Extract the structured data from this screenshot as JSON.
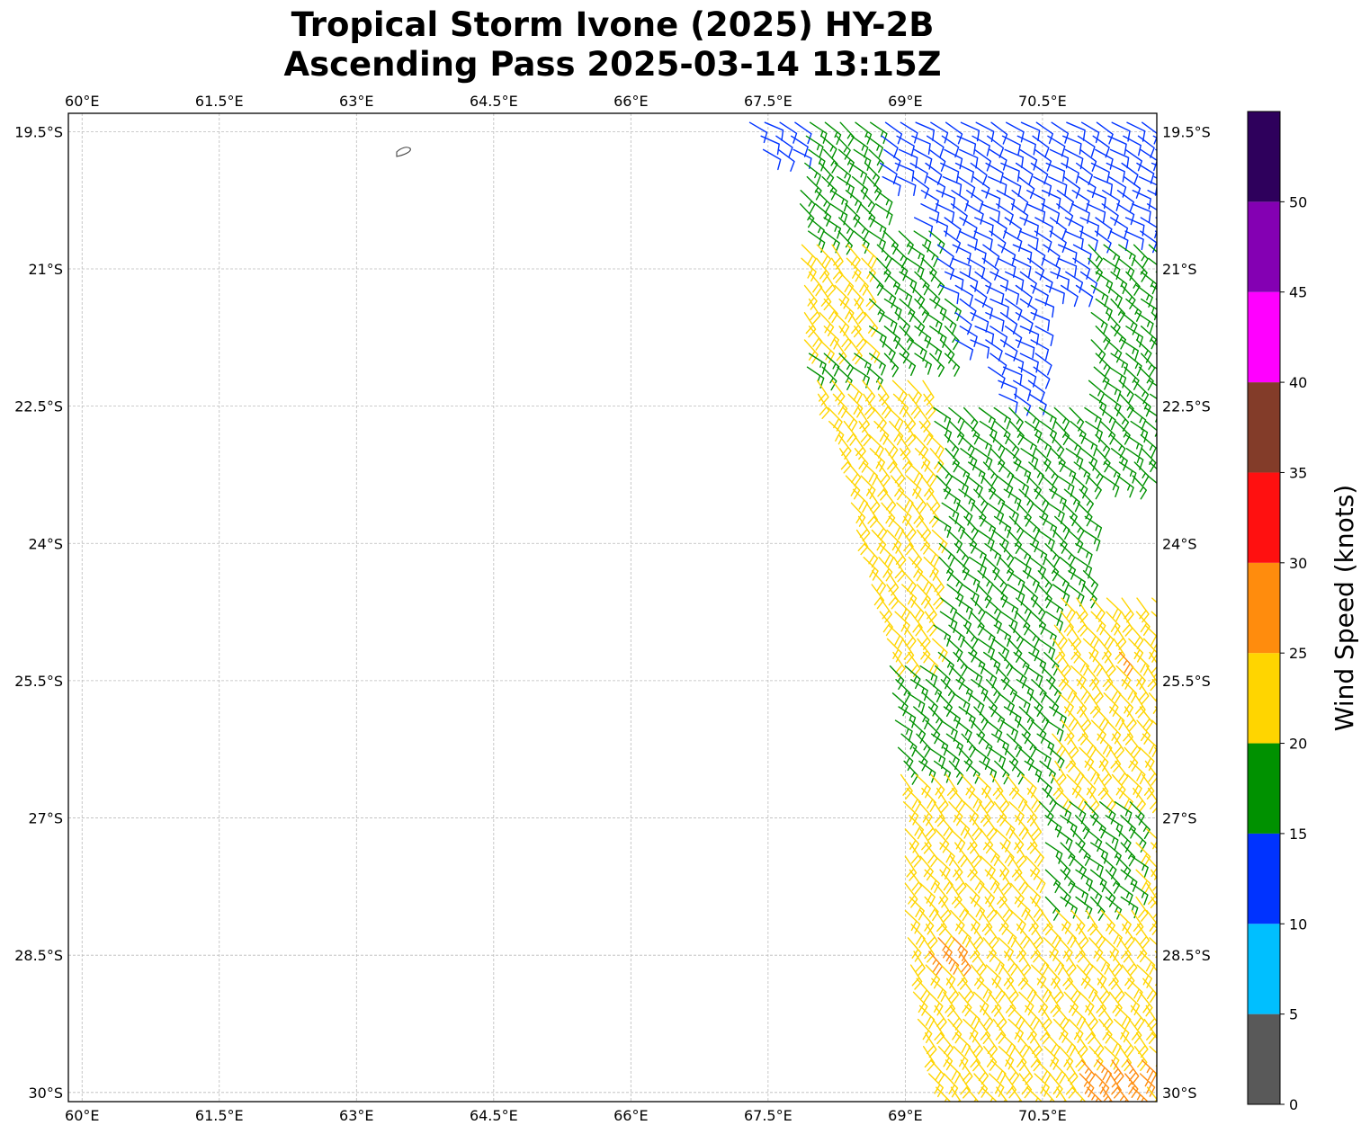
{
  "title": {
    "line1": "Tropical Storm Ivone (2025) HY-2B",
    "line2": "Ascending Pass 2025-03-14 13:15Z"
  },
  "map": {
    "lon_range": [
      59.85,
      71.75
    ],
    "lat_range": [
      -30.1,
      -19.3
    ],
    "lon_ticks": [
      {
        "value": 60.0,
        "label": "60°E"
      },
      {
        "value": 61.5,
        "label": "61.5°E"
      },
      {
        "value": 63.0,
        "label": "63°E"
      },
      {
        "value": 64.5,
        "label": "64.5°E"
      },
      {
        "value": 66.0,
        "label": "66°E"
      },
      {
        "value": 67.5,
        "label": "67.5°E"
      },
      {
        "value": 69.0,
        "label": "69°E"
      },
      {
        "value": 70.5,
        "label": "70.5°E"
      }
    ],
    "lat_ticks": [
      {
        "value": -19.5,
        "label": "19.5°S"
      },
      {
        "value": -21.0,
        "label": "21°S"
      },
      {
        "value": -22.5,
        "label": "22.5°S"
      },
      {
        "value": -24.0,
        "label": "24°S"
      },
      {
        "value": -25.5,
        "label": "25.5°S"
      },
      {
        "value": -27.0,
        "label": "27°S"
      },
      {
        "value": -28.5,
        "label": "28.5°S"
      },
      {
        "value": -30.0,
        "label": "30°S"
      }
    ],
    "gridlines": true,
    "coastline_features": [
      "Rodrigues Island near 63.4°E, 19.7°S"
    ]
  },
  "colorbar": {
    "label": "Wind Speed (knots)",
    "bins": [
      {
        "min": 0,
        "max": 5,
        "color": "#595959"
      },
      {
        "min": 5,
        "max": 10,
        "color": "#00bfff"
      },
      {
        "min": 10,
        "max": 15,
        "color": "#0033ff"
      },
      {
        "min": 15,
        "max": 20,
        "color": "#009100"
      },
      {
        "min": 20,
        "max": 25,
        "color": "#ffd500"
      },
      {
        "min": 25,
        "max": 30,
        "color": "#ff8c0d"
      },
      {
        "min": 30,
        "max": 35,
        "color": "#ff1010"
      },
      {
        "min": 35,
        "max": 40,
        "color": "#833c29"
      },
      {
        "min": 40,
        "max": 45,
        "color": "#ff00ff"
      },
      {
        "min": 45,
        "max": 50,
        "color": "#8400b3"
      },
      {
        "min": 50,
        "max": 55,
        "color": "#2e005c"
      }
    ],
    "tick_labels": [
      "0",
      "5",
      "10",
      "15",
      "20",
      "25",
      "30",
      "35",
      "40",
      "45",
      "50"
    ]
  },
  "chart_data": {
    "type": "wind_barbs",
    "title": "Tropical Storm Ivone (2025) HY-2B Ascending Pass 2025-03-14 13:15Z",
    "units": "knots",
    "swath": {
      "west_edge": [
        [
          -19.4,
          67.3
        ],
        [
          -20.0,
          67.6
        ],
        [
          -21.0,
          67.9
        ],
        [
          -22.0,
          67.9
        ],
        [
          -23.0,
          68.3
        ],
        [
          -24.0,
          68.5
        ],
        [
          -25.0,
          68.8
        ],
        [
          -26.0,
          68.9
        ],
        [
          -27.0,
          69.0
        ],
        [
          -28.0,
          69.0
        ],
        [
          -29.0,
          69.1
        ],
        [
          -30.0,
          69.3
        ]
      ],
      "east_edge_lon": 71.75,
      "spacing_deg": 0.165
    },
    "speed_regions": [
      {
        "name": "blue",
        "speed_kt": 12,
        "direction_deg": 120,
        "cells": [
          [
            -19.4,
            68.6,
            -20.0,
            71.8
          ],
          [
            -20.0,
            69.1,
            -20.6,
            71.8
          ],
          [
            -20.6,
            69.2,
            -21.2,
            71.2
          ],
          [
            -21.2,
            69.5,
            -21.9,
            70.5
          ],
          [
            -21.9,
            69.9,
            -22.6,
            70.5
          ],
          [
            -19.4,
            67.3,
            -19.8,
            67.8
          ]
        ]
      },
      {
        "name": "green",
        "speed_kt": 17,
        "direction_deg": 130,
        "cells": [
          [
            -19.4,
            67.8,
            -20.5,
            68.7
          ],
          [
            -20.5,
            67.9,
            -21.3,
            69.3
          ],
          [
            -21.3,
            68.5,
            -22.0,
            69.5
          ],
          [
            -21.6,
            67.9,
            -22.4,
            68.6
          ],
          [
            -22.4,
            69.3,
            -24.5,
            71.0
          ],
          [
            -20.6,
            71.0,
            -23.4,
            71.8
          ],
          [
            -24.5,
            69.0,
            -25.5,
            70.6
          ],
          [
            -25.0,
            68.3,
            -26.5,
            69.8
          ],
          [
            -25.5,
            69.8,
            -27.0,
            70.8
          ],
          [
            -26.8,
            70.5,
            -28.0,
            71.6
          ]
        ]
      },
      {
        "name": "yellow",
        "speed_kt": 22,
        "direction_deg": 140,
        "cells": [
          [
            -20.6,
            67.8,
            -21.8,
            68.6
          ],
          [
            -22.2,
            68.0,
            -25.2,
            69.3
          ],
          [
            -24.5,
            70.6,
            -26.8,
            71.8
          ],
          [
            -26.5,
            68.8,
            -30.0,
            70.4
          ],
          [
            -28.0,
            70.4,
            -30.0,
            71.8
          ],
          [
            -27.0,
            71.5,
            -28.2,
            71.8
          ]
        ]
      },
      {
        "name": "orange",
        "speed_kt": 27,
        "direction_deg": 140,
        "cells": [
          [
            -25.1,
            71.3,
            -25.3,
            71.5
          ],
          [
            -28.3,
            69.2,
            -28.5,
            69.6
          ],
          [
            -29.5,
            70.9,
            -30.0,
            71.6
          ]
        ]
      }
    ]
  }
}
